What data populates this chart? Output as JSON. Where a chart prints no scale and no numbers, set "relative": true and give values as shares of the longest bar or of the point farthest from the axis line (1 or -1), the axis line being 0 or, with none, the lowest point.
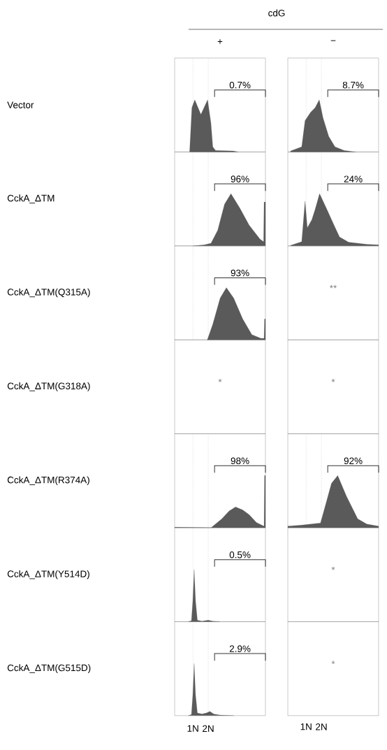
{
  "chart_data": [
    {
      "type": "area",
      "relative": true,
      "title": "cdG",
      "subtitle": "+",
      "ylabel": "Vector",
      "color": "#5a5a5a",
      "xlim": [
        -0.2,
        5.75
      ],
      "ref_lines": [
        {
          "axis": "x",
          "value": 1
        },
        {
          "axis": "x",
          "value": 2
        }
      ],
      "annotations": [
        "0.7%"
      ],
      "x": [
        0.78,
        0.93,
        1.12,
        1.52,
        1.96,
        2.18,
        2.3,
        2.48,
        3.65,
        3.97
      ],
      "values": [
        0,
        0.85,
        1,
        0.72,
        1,
        0.55,
        0.1,
        0.03,
        0.02,
        0
      ]
    },
    {
      "type": "area",
      "relative": true,
      "subtitle": "−",
      "color": "#5a5a5a",
      "xlim": [
        -0.2,
        5.75
      ],
      "ref_lines": [
        {
          "axis": "x",
          "value": 1
        },
        {
          "axis": "x",
          "value": 2
        }
      ],
      "annotations": [
        "8.7%"
      ],
      "x": [
        -0.02,
        0.71,
        0.93,
        1.29,
        1.59,
        1.86,
        2.11,
        2.48,
        2.89,
        3.49,
        4.26
      ],
      "values": [
        0.02,
        0.1,
        0.6,
        0.76,
        0.85,
        1,
        0.65,
        0.3,
        0.1,
        0.03,
        0
      ]
    },
    {
      "type": "area",
      "relative": true,
      "ylabel": "CckA_ΔTM",
      "color": "#5a5a5a",
      "xlim": [
        -0.2,
        5.75
      ],
      "ref_lines": [
        {
          "axis": "x",
          "value": 1
        },
        {
          "axis": "x",
          "value": 2
        }
      ],
      "annotations": [
        "96%"
      ],
      "x": [
        1.0,
        1.74,
        2.18,
        2.62,
        3.07,
        3.49,
        4.08,
        4.68,
        5.39,
        5.63,
        5.66,
        5.75
      ],
      "values": [
        0,
        0.02,
        0.05,
        0.3,
        0.8,
        1,
        0.72,
        0.4,
        0.13,
        0.08,
        0.84,
        0.84
      ]
    },
    {
      "type": "area",
      "relative": true,
      "color": "#5a5a5a",
      "xlim": [
        -0.2,
        5.75
      ],
      "ref_lines": [
        {
          "axis": "x",
          "value": 1
        },
        {
          "axis": "x",
          "value": 2
        }
      ],
      "annotations": [
        "24%"
      ],
      "x": [
        -0.02,
        0.71,
        0.93,
        1.08,
        1.37,
        1.59,
        1.88,
        2.33,
        2.78,
        3.19,
        3.79,
        4.98,
        5.75
      ],
      "values": [
        0.01,
        0.08,
        0.86,
        0.35,
        0.5,
        0.7,
        1,
        0.72,
        0.43,
        0.17,
        0.07,
        0.03,
        0.02
      ]
    },
    {
      "type": "area",
      "relative": true,
      "ylabel": "CckA_ΔTM(Q315A)",
      "color": "#5a5a5a",
      "xlim": [
        -0.2,
        5.75
      ],
      "ref_lines": [
        {
          "axis": "x",
          "value": 1
        },
        {
          "axis": "x",
          "value": 2
        }
      ],
      "annotations": [
        "93%"
      ],
      "x": [
        1.94,
        2.3,
        2.78,
        3.19,
        3.67,
        4.26,
        4.86,
        5.45,
        5.66,
        5.69,
        5.75
      ],
      "values": [
        0,
        0.3,
        0.8,
        1,
        0.8,
        0.4,
        0.1,
        0.03,
        0.03,
        0.4,
        0.4
      ]
    },
    {
      "type": "other",
      "annotations": [
        "**"
      ]
    },
    {
      "type": "other",
      "ylabel": "CckA_ΔTM(G318A)",
      "annotations": [
        "*"
      ]
    },
    {
      "type": "other",
      "annotations": [
        "*"
      ]
    },
    {
      "type": "area",
      "relative": true,
      "ylabel": "CckA_ΔTM(R374A)",
      "color": "#5a5a5a",
      "xlim": [
        -0.2,
        5.75
      ],
      "ref_lines": [
        {
          "axis": "x",
          "value": 1
        },
        {
          "axis": "x",
          "value": 2
        }
      ],
      "annotations": [
        "98%"
      ],
      "x": [
        -0.2,
        2.18,
        2.89,
        3.37,
        3.79,
        4.26,
        4.68,
        5.16,
        5.51,
        5.66,
        5.69,
        5.75
      ],
      "values": [
        0.01,
        0,
        0.17,
        0.32,
        0.4,
        0.34,
        0.25,
        0.1,
        0.05,
        0.03,
        1,
        1
      ]
    },
    {
      "type": "area",
      "relative": true,
      "color": "#5a5a5a",
      "xlim": [
        -0.2,
        5.75
      ],
      "ref_lines": [
        {
          "axis": "x",
          "value": 1
        },
        {
          "axis": "x",
          "value": 2
        }
      ],
      "annotations": [
        "92%"
      ],
      "x": [
        -0.2,
        0.69,
        1.94,
        2.33,
        2.66,
        3.07,
        3.65,
        4.38,
        4.98,
        5.75
      ],
      "values": [
        0.03,
        0.05,
        0.09,
        0.5,
        0.85,
        1,
        0.6,
        0.17,
        0.07,
        0.03
      ]
    },
    {
      "type": "area",
      "relative": true,
      "ylabel": "CckA_ΔTM(Y514D)",
      "color": "#5a5a5a",
      "xlim": [
        -0.2,
        5.75
      ],
      "ref_lines": [
        {
          "axis": "x",
          "value": 1
        },
        {
          "axis": "x",
          "value": 2
        }
      ],
      "annotations": [
        "0.5%"
      ],
      "x": [
        0.69,
        0.9,
        0.99,
        1.08,
        1.17,
        1.29,
        1.59,
        2.0,
        2.3,
        2.78
      ],
      "values": [
        0,
        0.02,
        0.4,
        1,
        0.4,
        0.03,
        0.01,
        0.03,
        0.01,
        0
      ]
    },
    {
      "type": "other",
      "annotations": [
        "*"
      ]
    },
    {
      "type": "area",
      "relative": true,
      "ylabel": "CckA_ΔTM(G515D)",
      "color": "#5a5a5a",
      "xlim": [
        -0.2,
        5.75
      ],
      "xticks": [
        {
          "value": 1,
          "label": "1N"
        },
        {
          "value": 2,
          "label": "2N"
        }
      ],
      "ref_lines": [
        {
          "axis": "x",
          "value": 1
        },
        {
          "axis": "x",
          "value": 2
        }
      ],
      "annotations": [
        "2.9%"
      ],
      "x": [
        0.69,
        0.9,
        0.99,
        1.08,
        1.17,
        1.29,
        1.59,
        1.88,
        2.11,
        2.36,
        2.78,
        3.67
      ],
      "values": [
        0,
        0.02,
        0.4,
        1,
        0.4,
        0.05,
        0.03,
        0.05,
        0.08,
        0.03,
        0.01,
        0
      ]
    },
    {
      "type": "other",
      "annotations": [
        "*",
        "1N",
        "2N"
      ]
    }
  ]
}
